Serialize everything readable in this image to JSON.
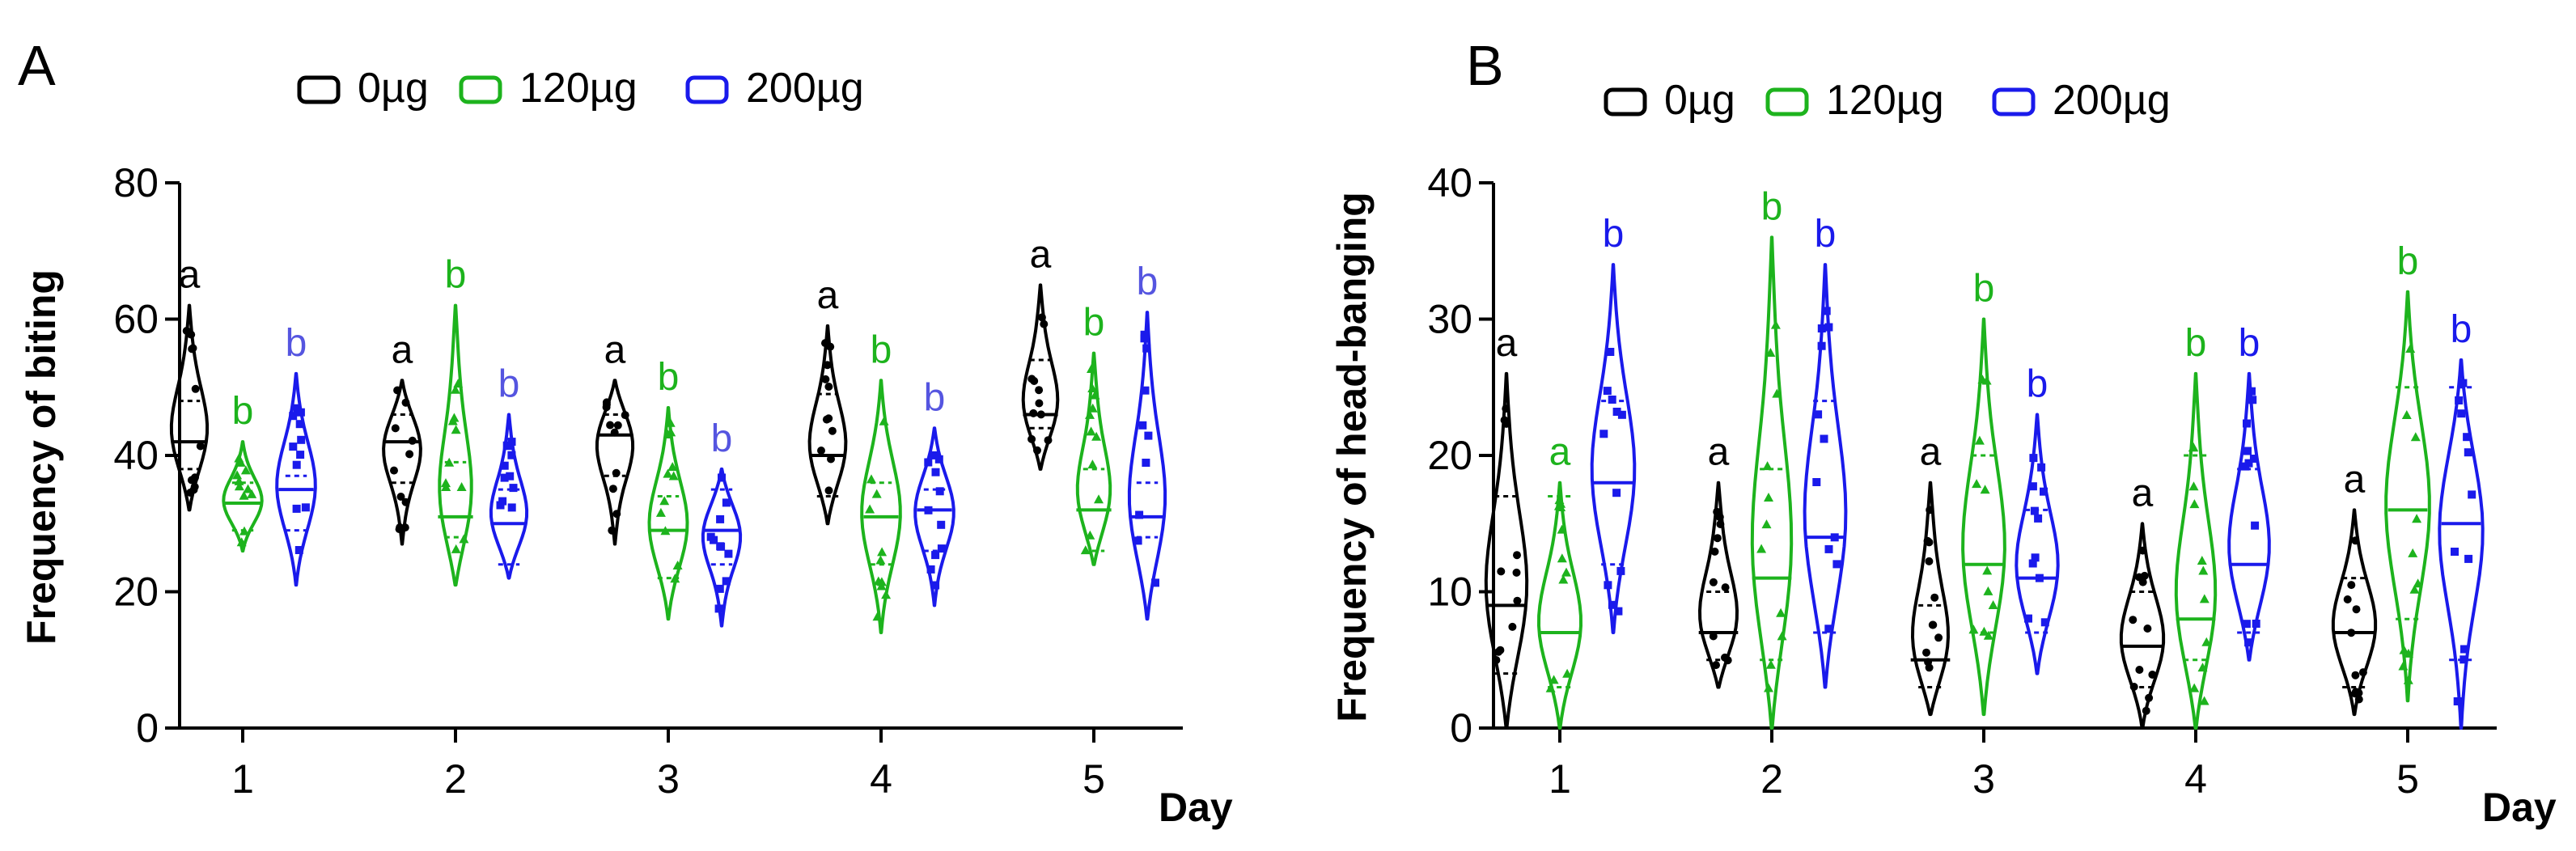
{
  "colors": {
    "g0": "#000000",
    "g120": "#1db31d",
    "g200": "#1a1aeb",
    "sig200A": "#5555e0"
  },
  "legend": [
    {
      "label": "0µg",
      "color": "#000000"
    },
    {
      "label": "120µg",
      "color": "#1db31d"
    },
    {
      "label": "200µg",
      "color": "#1a1aeb"
    }
  ],
  "chart_data": [
    {
      "panel": "A",
      "type": "violin",
      "title": "",
      "ylabel": "Frequency of biting",
      "xlabel": "Day",
      "ylim": [
        0,
        80
      ],
      "yticks": [
        "0",
        "20",
        "40",
        "60",
        "80"
      ],
      "categories": [
        "1",
        "2",
        "3",
        "4",
        "5"
      ],
      "series": [
        {
          "name": "0µg",
          "color": "#000000",
          "min": [
            32,
            27,
            27,
            30,
            38
          ],
          "max": [
            62,
            51,
            51,
            59,
            65
          ],
          "q1": [
            38,
            36,
            37,
            34,
            44
          ],
          "median": [
            42,
            42,
            43,
            40,
            46
          ],
          "q3": [
            48,
            46,
            46,
            49,
            54
          ],
          "letters": [
            "a",
            "a",
            "a",
            "a",
            "a"
          ]
        },
        {
          "name": "120µg",
          "color": "#1db31d",
          "min": [
            26,
            21,
            16,
            14,
            24
          ],
          "max": [
            42,
            62,
            47,
            51,
            55
          ],
          "q1": [
            29,
            28,
            22,
            24,
            26
          ],
          "median": [
            33,
            31,
            29,
            31,
            32
          ],
          "q3": [
            36,
            39,
            34,
            36,
            38
          ],
          "letters": [
            "b",
            "b",
            "b",
            "b",
            "b"
          ]
        },
        {
          "name": "200µg",
          "color": "#1a1aeb",
          "min": [
            21,
            22,
            15,
            18,
            16
          ],
          "max": [
            52,
            46,
            38,
            44,
            61
          ],
          "q1": [
            29,
            24,
            24,
            26,
            28
          ],
          "median": [
            35,
            30,
            29,
            32,
            31
          ],
          "q3": [
            37,
            35,
            35,
            35,
            36
          ],
          "letters": [
            "b",
            "b",
            "b",
            "b",
            "b"
          ]
        }
      ]
    },
    {
      "panel": "B",
      "type": "violin",
      "title": "",
      "ylabel": "Frequency of  head-banging",
      "xlabel": "Day",
      "ylim": [
        0,
        40
      ],
      "yticks": [
        "0",
        "10",
        "20",
        "30",
        "40"
      ],
      "categories": [
        "1",
        "2",
        "3",
        "4",
        "5"
      ],
      "series": [
        {
          "name": "0µg",
          "color": "#000000",
          "min": [
            0,
            3,
            1,
            0,
            1
          ],
          "max": [
            26,
            18,
            18,
            15,
            16
          ],
          "q1": [
            4,
            5,
            3,
            3,
            3
          ],
          "median": [
            9,
            7,
            5,
            6,
            7
          ],
          "q3": [
            17,
            10,
            9,
            10,
            11
          ],
          "letters": [
            "a",
            "a",
            "a",
            "a",
            "a"
          ]
        },
        {
          "name": "120µg",
          "color": "#1db31d",
          "min": [
            0,
            0,
            1,
            0,
            2
          ],
          "max": [
            18,
            36,
            30,
            26,
            32
          ],
          "q1": [
            3,
            5,
            7,
            5,
            8
          ],
          "median": [
            7,
            11,
            12,
            8,
            16
          ],
          "q3": [
            17,
            19,
            20,
            20,
            25
          ],
          "letters": [
            "a",
            "b",
            "b",
            "b",
            "b"
          ]
        },
        {
          "name": "200µg",
          "color": "#1a1aeb",
          "min": [
            7,
            3,
            4,
            5,
            0
          ],
          "max": [
            34,
            34,
            23,
            26,
            27
          ],
          "q1": [
            12,
            7,
            7,
            7,
            5
          ],
          "median": [
            18,
            14,
            11,
            12,
            15
          ],
          "q3": [
            24,
            24,
            16,
            19,
            25
          ],
          "letters": [
            "b",
            "b",
            "b",
            "b",
            "b"
          ]
        }
      ]
    }
  ]
}
